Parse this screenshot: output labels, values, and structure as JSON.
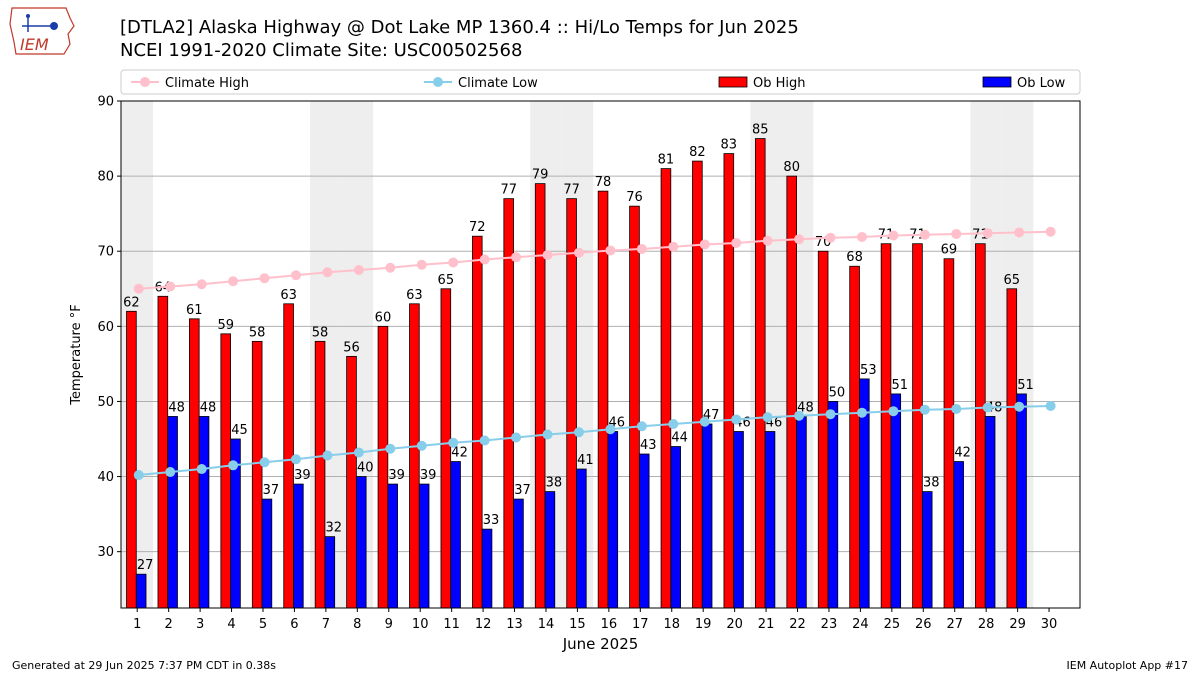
{
  "header": {
    "title_line1": "[DTLA2] Alaska Highway @ Dot Lake MP 1360.4 :: Hi/Lo Temps for Jun 2025",
    "title_line2": "NCEI 1991-2020 Climate Site: USC00502568"
  },
  "logo": {
    "text": "IEM",
    "icon": "iowa-state-outline-logo"
  },
  "footer": {
    "generated": "Generated at 29 Jun 2025 7:37 PM CDT in 0.38s",
    "app": "IEM Autoplot App #17"
  },
  "colors": {
    "ob_high": "#ff0000",
    "ob_low": "#0000ff",
    "climate_high": "#ffc0cb",
    "climate_low": "#87ceeb",
    "weekend_band": "#eeeeee",
    "grid": "#b0b0b0"
  },
  "chart_data": {
    "type": "bar",
    "xlabel": "June 2025",
    "ylabel": "Temperature °F",
    "ylim": [
      22.5,
      90
    ],
    "yticks": [
      30,
      40,
      50,
      60,
      70,
      80,
      90
    ],
    "categories": [
      1,
      2,
      3,
      4,
      5,
      6,
      7,
      8,
      9,
      10,
      11,
      12,
      13,
      14,
      15,
      16,
      17,
      18,
      19,
      20,
      21,
      22,
      23,
      24,
      25,
      26,
      27,
      28,
      29,
      30
    ],
    "grid": "horizontal",
    "legend": {
      "placement": "top",
      "entries": [
        "Climate High",
        "Climate Low",
        "Ob High",
        "Ob Low"
      ]
    },
    "weekend_days": [
      1,
      7,
      8,
      14,
      15,
      21,
      22,
      28,
      29
    ],
    "series": [
      {
        "name": "Ob High",
        "kind": "bar",
        "values": [
          62,
          64,
          61,
          59,
          58,
          63,
          58,
          56,
          60,
          63,
          65,
          72,
          77,
          79,
          77,
          78,
          76,
          81,
          82,
          83,
          85,
          80,
          70,
          68,
          71,
          71,
          69,
          71,
          65,
          null
        ]
      },
      {
        "name": "Ob Low",
        "kind": "bar",
        "values": [
          27,
          48,
          48,
          45,
          37,
          39,
          32,
          40,
          39,
          39,
          42,
          33,
          37,
          38,
          41,
          46,
          43,
          44,
          47,
          46,
          46,
          48,
          50,
          53,
          51,
          38,
          42,
          48,
          51,
          null
        ]
      },
      {
        "name": "Climate High",
        "kind": "line",
        "values": [
          65.0,
          65.3,
          65.6,
          66.0,
          66.4,
          66.8,
          67.2,
          67.5,
          67.8,
          68.2,
          68.5,
          68.9,
          69.2,
          69.5,
          69.8,
          70.1,
          70.3,
          70.6,
          70.9,
          71.1,
          71.4,
          71.6,
          71.8,
          71.9,
          72.1,
          72.2,
          72.3,
          72.4,
          72.5,
          72.6
        ]
      },
      {
        "name": "Climate Low",
        "kind": "line",
        "values": [
          40.2,
          40.6,
          41.0,
          41.5,
          41.9,
          42.3,
          42.8,
          43.2,
          43.7,
          44.1,
          44.5,
          44.8,
          45.2,
          45.6,
          45.9,
          46.3,
          46.7,
          47.0,
          47.3,
          47.6,
          47.9,
          48.1,
          48.3,
          48.5,
          48.7,
          48.9,
          49.0,
          49.2,
          49.3,
          49.4
        ]
      }
    ]
  }
}
